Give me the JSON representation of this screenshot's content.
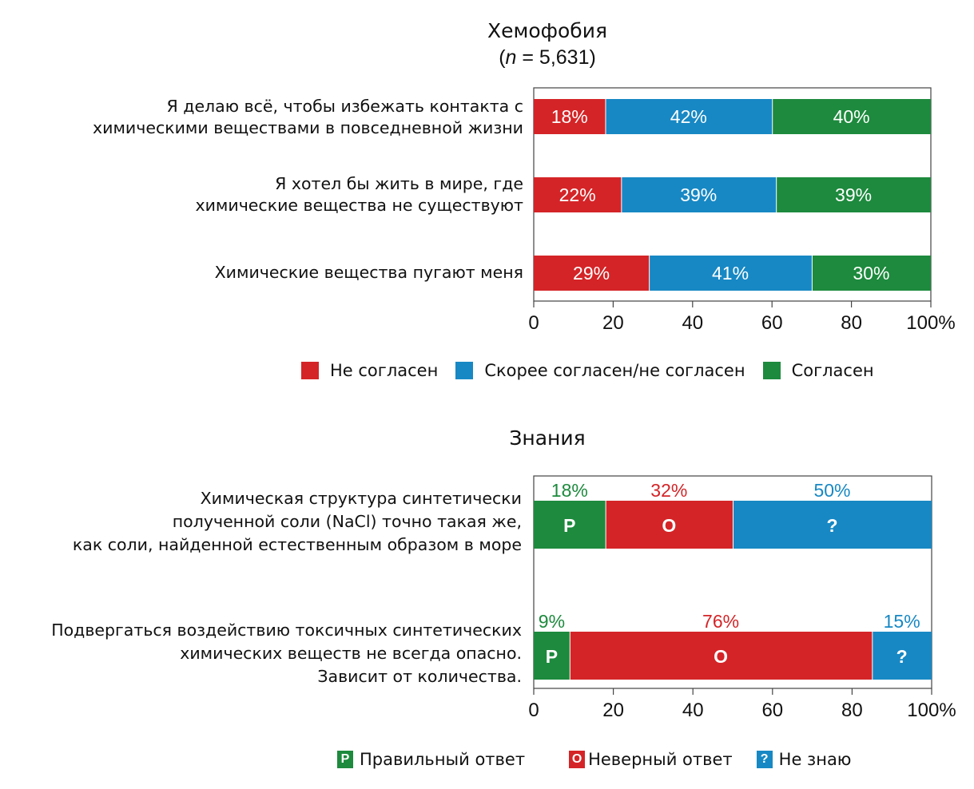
{
  "colors": {
    "red": "#d42427",
    "blue": "#1788c4",
    "green": "#1d8a3d",
    "axis": "#555555",
    "text": "#111111"
  },
  "chart_data": [
    {
      "type": "bar",
      "orientation": "horizontal",
      "stacked": true,
      "title": "Хемофобия",
      "subtitle_prefix": "(",
      "subtitle_n": "n",
      "subtitle_rest": " = 5,631)",
      "categories": [
        [
          "Я делаю всё, чтобы избежать контакта с",
          "химическими веществами в повседневной жизни"
        ],
        [
          "Я хотел бы жить в мире, где",
          "химические вещества не существуют"
        ],
        [
          "Химические вещества пугают меня"
        ]
      ],
      "series": [
        {
          "name": "Не согласен",
          "color": "red",
          "values": [
            18,
            22,
            29
          ]
        },
        {
          "name": "Скорее согласен/не согласен",
          "color": "blue",
          "values": [
            42,
            39,
            41
          ]
        },
        {
          "name": "Согласен",
          "color": "green",
          "values": [
            40,
            39,
            30
          ]
        }
      ],
      "data_labels": "inside",
      "xlim": [
        0,
        100
      ],
      "xticks": [
        0,
        20,
        40,
        60,
        80,
        100
      ],
      "xtick_labels": [
        "0",
        "20",
        "40",
        "60",
        "80",
        "100%"
      ],
      "xlabel": "",
      "ylabel": "",
      "grid": false,
      "legend": [
        "Не согласен",
        "Скорее согласен/не согласен",
        "Согласен"
      ],
      "legend_position": "bottom"
    },
    {
      "type": "bar",
      "orientation": "horizontal",
      "stacked": true,
      "title": "Знания",
      "categories": [
        [
          "Химическая структура синтетически",
          "полученной соли (NaCl) точно такая же,",
          "как соли, найденной естественным образом в море"
        ],
        [
          "Подвергаться воздействию токсичных синтетических",
          "химических веществ не всегда опасно.",
          "Зависит от количества."
        ]
      ],
      "series": [
        {
          "name": "Правильный ответ",
          "short": "P",
          "color": "green",
          "values": [
            18,
            9
          ]
        },
        {
          "name": "Неверный ответ",
          "short": "O",
          "color": "red",
          "values": [
            32,
            76
          ]
        },
        {
          "name": "Не знаю",
          "short": "?",
          "color": "blue",
          "values": [
            50,
            15
          ]
        }
      ],
      "data_labels": "above",
      "xlim": [
        0,
        100
      ],
      "xticks": [
        0,
        20,
        40,
        60,
        80,
        100
      ],
      "xtick_labels": [
        "0",
        "20",
        "40",
        "60",
        "80",
        "100%"
      ],
      "xlabel": "",
      "ylabel": "",
      "grid": false,
      "legend": [
        "Правильный ответ",
        "Неверный ответ",
        "Не знаю"
      ],
      "legend_position": "bottom"
    }
  ]
}
